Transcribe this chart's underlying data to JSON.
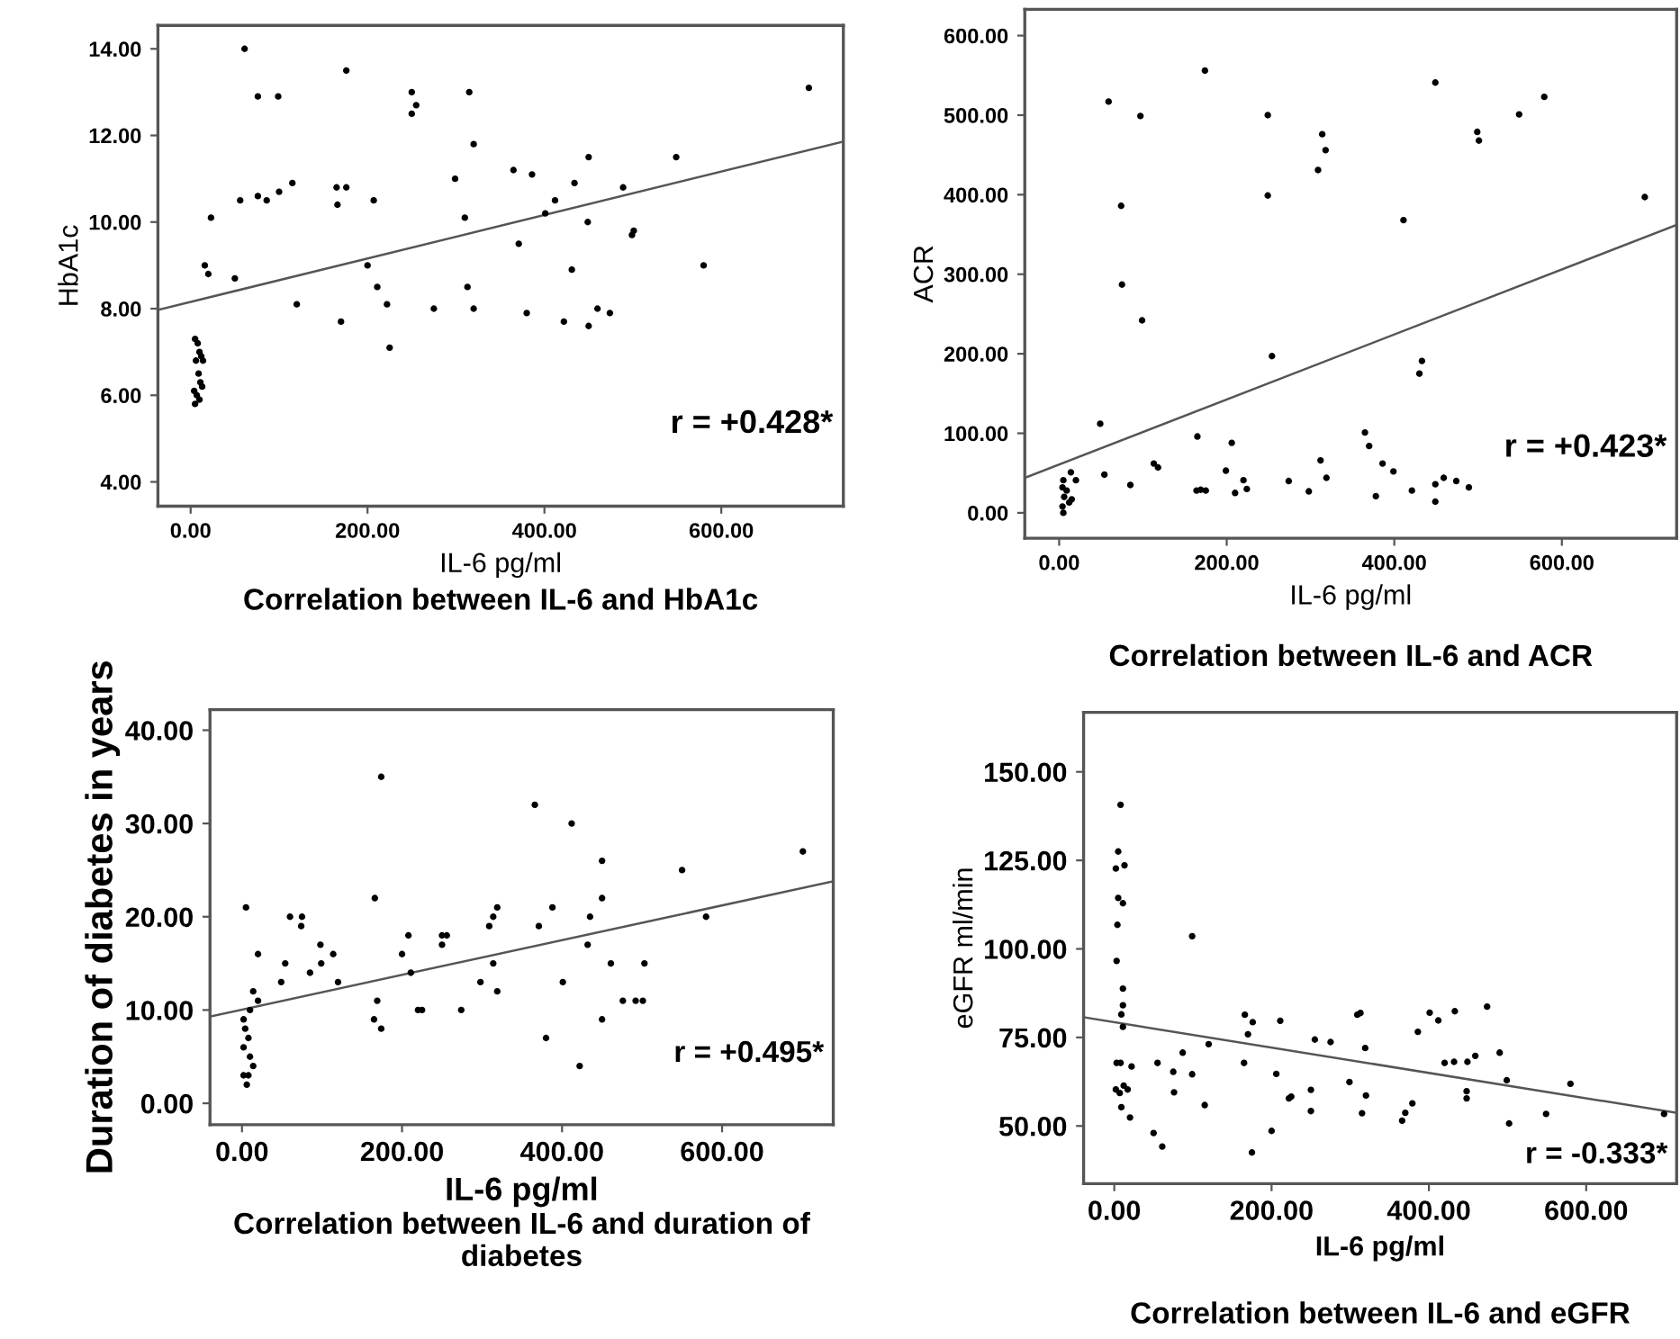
{
  "chart_data": [
    {
      "type": "scatter",
      "title": "Correlation between IL-6 and HbA1c",
      "xlabel": "IL-6 pg/ml",
      "ylabel": "HbA1c",
      "annotations": [
        "r = +0.428*"
      ],
      "grid": false,
      "legend": false,
      "xlim": [
        -37,
        738
      ],
      "ylim": [
        3.44,
        14.54
      ],
      "xticks": [
        {
          "value": 0,
          "label": "0.00"
        },
        {
          "value": 200,
          "label": "200.00"
        },
        {
          "value": 400,
          "label": "400.00"
        },
        {
          "value": 600,
          "label": "600.00"
        }
      ],
      "yticks": [
        {
          "value": 4,
          "label": "4.00"
        },
        {
          "value": 6,
          "label": "6.00"
        },
        {
          "value": 8,
          "label": "8.00"
        },
        {
          "value": 10,
          "label": "10.00"
        },
        {
          "value": 12,
          "label": "12.00"
        },
        {
          "value": 14,
          "label": "14.00"
        }
      ],
      "series": [
        {
          "marker": "circle",
          "color": "#000000",
          "x": [
            61,
            76,
            99,
            176,
            250,
            255,
            250,
            315,
            320,
            699,
            549,
            450,
            365,
            386,
            299,
            434,
            489,
            412,
            401,
            310,
            449,
            501,
            499,
            371,
            580,
            431,
            313,
            320,
            275,
            380,
            422,
            450,
            460,
            474,
            200,
            211,
            222,
            225,
            170,
            166,
            165,
            176,
            207,
            115,
            100,
            76,
            86,
            56,
            23,
            16,
            20,
            50,
            120,
            5,
            8,
            10,
            12,
            14,
            6,
            9,
            11,
            13,
            4,
            7,
            10,
            5
          ],
          "values": [
            14.0,
            12.9,
            12.9,
            13.5,
            13.0,
            12.7,
            12.5,
            13.0,
            11.8,
            13.1,
            11.5,
            11.5,
            11.2,
            11.1,
            11.0,
            10.9,
            10.8,
            10.5,
            10.2,
            10.1,
            10.0,
            9.8,
            9.7,
            9.5,
            9.0,
            8.9,
            8.5,
            8.0,
            8.0,
            7.9,
            7.7,
            7.6,
            8.0,
            7.9,
            9.0,
            8.5,
            8.1,
            7.1,
            7.7,
            10.4,
            10.8,
            10.8,
            10.5,
            10.9,
            10.7,
            10.6,
            10.5,
            10.5,
            10.1,
            9.0,
            8.8,
            8.7,
            8.1,
            7.3,
            7.2,
            7.0,
            6.9,
            6.8,
            6.8,
            6.5,
            6.3,
            6.2,
            6.1,
            6.0,
            5.9,
            5.8
          ]
        },
        {
          "type": "line",
          "color": "#555555",
          "x": [
            -37,
            738
          ],
          "values": [
            7.97,
            11.86
          ]
        }
      ]
    },
    {
      "type": "scatter",
      "title": "Correlation between IL-6 and ACR",
      "xlabel": "IL-6 pg/ml",
      "ylabel": "ACR",
      "annotations": [
        "r = +0.423*"
      ],
      "grid": false,
      "legend": false,
      "xlim": [
        -41,
        737
      ],
      "ylim": [
        -32,
        633
      ],
      "xticks": [
        {
          "value": 0,
          "label": "0.00"
        },
        {
          "value": 200,
          "label": "200.00"
        },
        {
          "value": 400,
          "label": "400.00"
        },
        {
          "value": 600,
          "label": "600.00"
        }
      ],
      "yticks": [
        {
          "value": 0,
          "label": "0.00"
        },
        {
          "value": 100,
          "label": "100.00"
        },
        {
          "value": 200,
          "label": "200.00"
        },
        {
          "value": 300,
          "label": "300.00"
        },
        {
          "value": 400,
          "label": "400.00"
        },
        {
          "value": 500,
          "label": "500.00"
        },
        {
          "value": 600,
          "label": "600.00"
        }
      ],
      "series": [
        {
          "marker": "circle",
          "color": "#000000",
          "x": [
            174,
            59,
            97,
            249,
            249,
            314,
            318,
            309,
            254,
            74,
            75,
            99,
            411,
            449,
            499,
            501,
            549,
            579,
            699,
            433,
            430,
            49,
            54,
            85,
            113,
            118,
            165,
            164,
            169,
            175,
            199,
            206,
            210,
            220,
            224,
            274,
            298,
            312,
            319,
            365,
            370,
            386,
            399,
            378,
            421,
            449,
            449,
            459,
            474,
            489,
            14,
            20,
            5,
            4,
            9,
            6,
            12,
            4,
            5,
            15
          ],
          "values": [
            556,
            517,
            499,
            500,
            399,
            476,
            456,
            431,
            197,
            386,
            287,
            242,
            368,
            541,
            479,
            468,
            501,
            523,
            397,
            191,
            175,
            112,
            48,
            35,
            62,
            57,
            96,
            28,
            29,
            28,
            53,
            88,
            25,
            41,
            30,
            40,
            27,
            66,
            44,
            101,
            84,
            62,
            52,
            21,
            28,
            36,
            14,
            44,
            40,
            32,
            51,
            41,
            41,
            32,
            28,
            20,
            13,
            8,
            0,
            17
          ]
        },
        {
          "type": "line",
          "color": "#555555",
          "x": [
            -41,
            737
          ],
          "values": [
            44,
            362
          ]
        }
      ]
    },
    {
      "type": "scatter",
      "title": "Correlation between IL-6 and duration of diabetes",
      "xlabel": "IL-6 pg/ml",
      "ylabel": "Duration of diabetes in years",
      "annotations": [
        "r = +0.495*"
      ],
      "grid": false,
      "legend": false,
      "xlim": [
        -40,
        739
      ],
      "ylim": [
        -2.3,
        42.2
      ],
      "xticks": [
        {
          "value": 0,
          "label": "0.00"
        },
        {
          "value": 200,
          "label": "200.00"
        },
        {
          "value": 400,
          "label": "400.00"
        },
        {
          "value": 600,
          "label": "600.00"
        }
      ],
      "yticks": [
        {
          "value": 0,
          "label": "0.00"
        },
        {
          "value": 10,
          "label": "10.00"
        },
        {
          "value": 20,
          "label": "20.00"
        },
        {
          "value": 30,
          "label": "30.00"
        },
        {
          "value": 40,
          "label": "40.00"
        }
      ],
      "series": [
        {
          "marker": "circle",
          "color": "#000000",
          "x": [
            174,
            366,
            412,
            450,
            550,
            701,
            580,
            450,
            435,
            388,
            371,
            319,
            314,
            309,
            314,
            319,
            298,
            166,
            208,
            200,
            211,
            250,
            256,
            250,
            220,
            225,
            274,
            169,
            165,
            174,
            380,
            422,
            401,
            432,
            461,
            503,
            450,
            476,
            492,
            501,
            60,
            75,
            74,
            85,
            98,
            99,
            114,
            120,
            49,
            54,
            5,
            20,
            20,
            14,
            10,
            2,
            4,
            8,
            2,
            10,
            14,
            2,
            8,
            6
          ],
          "values": [
            35,
            32,
            30,
            26,
            25,
            27,
            20,
            22,
            20,
            21,
            19,
            21,
            20,
            19,
            15,
            12,
            13,
            22,
            18,
            16,
            14,
            18,
            18,
            17,
            10,
            10,
            10,
            11,
            9,
            8,
            7,
            4,
            13,
            17,
            15,
            15,
            9,
            11,
            11,
            11,
            20,
            20,
            19,
            14,
            17,
            15,
            16,
            13,
            13,
            15,
            21,
            16,
            11,
            12,
            10,
            9,
            8,
            7,
            6,
            5,
            4,
            3,
            3,
            2
          ]
        },
        {
          "type": "line",
          "color": "#555555",
          "x": [
            -40,
            739
          ],
          "values": [
            9.3,
            23.8
          ]
        }
      ]
    },
    {
      "type": "scatter",
      "title": "Correlation between IL-6 and eGFR",
      "xlabel": "IL-6 pg/ml",
      "ylabel": "eGFR ml/min",
      "annotations": [
        "r = -0.333*"
      ],
      "grid": false,
      "legend": false,
      "xlim": [
        -39,
        715
      ],
      "ylim": [
        33.7,
        166.8
      ],
      "xticks": [
        {
          "value": 0,
          "label": "0.00"
        },
        {
          "value": 200,
          "label": "200.00"
        },
        {
          "value": 400,
          "label": "400.00"
        },
        {
          "value": 600,
          "label": "600.00"
        }
      ],
      "yticks": [
        {
          "value": 50,
          "label": "50.00"
        },
        {
          "value": 75,
          "label": "75.00"
        },
        {
          "value": 100,
          "label": "100.00"
        },
        {
          "value": 125,
          "label": "125.00"
        },
        {
          "value": 150,
          "label": "150.00"
        }
      ],
      "series": [
        {
          "marker": "circle",
          "color": "#000000",
          "x": [
            8,
            5,
            2,
            13,
            5,
            11,
            4,
            3,
            11,
            11,
            9,
            11,
            3,
            8,
            22,
            2,
            7,
            12,
            17,
            9,
            20,
            99,
            55,
            75,
            76,
            87,
            99,
            120,
            115,
            50,
            61,
            166,
            176,
            170,
            165,
            211,
            206,
            222,
            225,
            200,
            175,
            255,
            275,
            250,
            250,
            299,
            309,
            313,
            319,
            320,
            315,
            366,
            370,
            379,
            386,
            401,
            412,
            433,
            420,
            432,
            449,
            459,
            474,
            490,
            448,
            448,
            499,
            502,
            549,
            580,
            699
          ],
          "values": [
            140.7,
            127.5,
            122.7,
            123.6,
            114.4,
            112.9,
            106.8,
            96.6,
            88.8,
            84.1,
            81.5,
            78.0,
            67.8,
            67.8,
            66.8,
            60.3,
            59.3,
            61.4,
            60.3,
            55.3,
            52.4,
            103.6,
            67.8,
            65.3,
            59.5,
            70.7,
            64.6,
            73.1,
            55.9,
            48.0,
            44.2,
            81.4,
            79.3,
            75.9,
            67.8,
            79.7,
            64.7,
            57.8,
            58.3,
            48.6,
            42.5,
            74.4,
            73.7,
            60.2,
            54.2,
            62.4,
            81.4,
            81.9,
            72.0,
            58.6,
            53.6,
            51.5,
            53.7,
            56.4,
            76.6,
            82.0,
            79.8,
            82.4,
            67.8,
            68.1,
            68.1,
            69.8,
            83.7,
            70.7,
            59.8,
            57.8,
            62.9,
            50.7,
            53.4,
            61.9,
            53.4
          ]
        },
        {
          "type": "line",
          "color": "#555555",
          "x": [
            -39,
            715
          ],
          "values": [
            80.7,
            53.7
          ]
        }
      ]
    }
  ]
}
